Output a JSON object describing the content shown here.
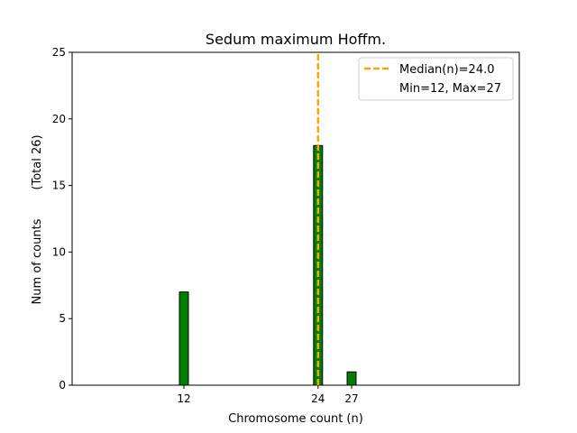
{
  "chart_data": {
    "type": "bar",
    "title": "Sedum maximum Hoffm.",
    "xlabel": "Chromosome count (n)",
    "ylabel": "Num of counts",
    "ylabel_total": "(Total 26)",
    "xlim": [
      2,
      42
    ],
    "ylim": [
      0,
      25
    ],
    "bar_width": 0.8,
    "x_ticks": [
      12,
      24,
      27
    ],
    "y_ticks": [
      0,
      5,
      10,
      15,
      20,
      25
    ],
    "bars": [
      {
        "x": 12,
        "value": 7
      },
      {
        "x": 24,
        "value": 18
      },
      {
        "x": 27,
        "value": 1
      }
    ],
    "baseline_extent": [
      2,
      29.5
    ],
    "median": 24.0,
    "legend": {
      "position": "top-right",
      "median_label": "Median(n)=24.0",
      "range_label": "Min=12, Max=27"
    },
    "colors": {
      "bar": "#008000",
      "bar_edge": "#000000",
      "median_line": "#ffa500"
    }
  }
}
